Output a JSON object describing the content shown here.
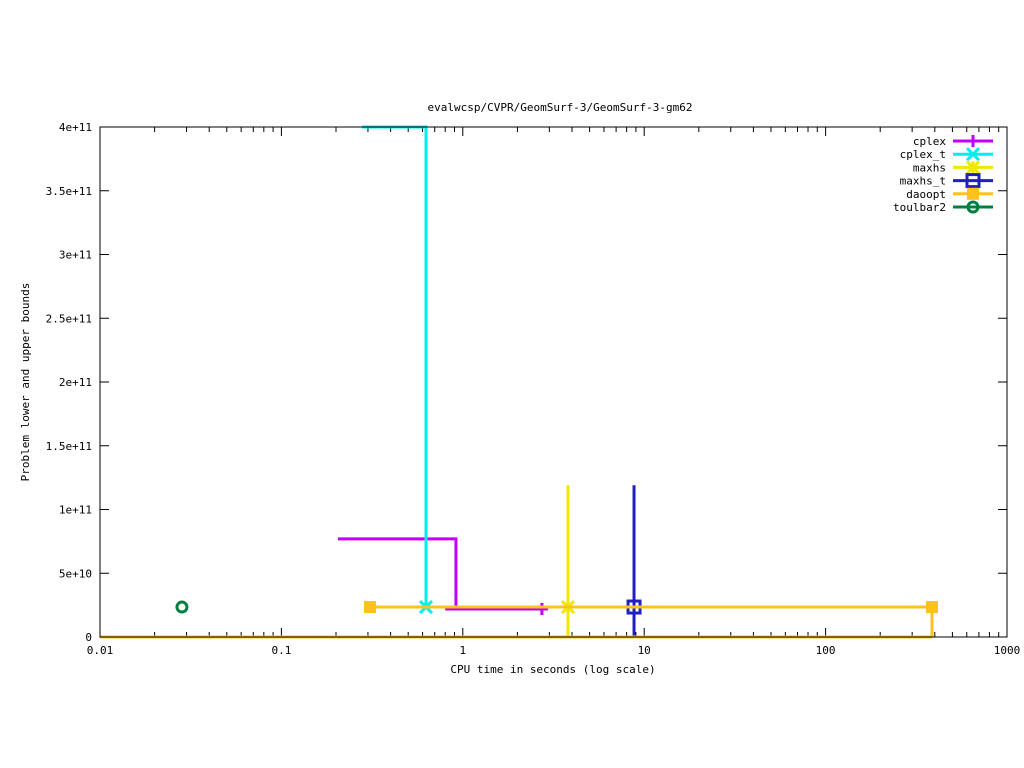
{
  "chart_data": {
    "type": "line",
    "title": "evalwcsp/CVPR/GeomSurf-3/GeomSurf-3-gm62",
    "xlabel": "CPU time in seconds (log scale)",
    "ylabel": "Problem lower and upper bounds",
    "xscale": "log",
    "xlim": [
      0.01,
      1000
    ],
    "ylim": [
      0,
      400000000000
    ],
    "xticks": [
      {
        "v": 0.01,
        "label": "0.01"
      },
      {
        "v": 0.1,
        "label": "0.1"
      },
      {
        "v": 1,
        "label": "1"
      },
      {
        "v": 10,
        "label": "10"
      },
      {
        "v": 100,
        "label": "100"
      },
      {
        "v": 1000,
        "label": "1000"
      }
    ],
    "yticks": [
      {
        "v": 0,
        "label": "0"
      },
      {
        "v": 50000000000,
        "label": "5e+10"
      },
      {
        "v": 100000000000,
        "label": "1e+11"
      },
      {
        "v": 150000000000,
        "label": "1.5e+11"
      },
      {
        "v": 200000000000,
        "label": "2e+11"
      },
      {
        "v": 250000000000,
        "label": "2.5e+11"
      },
      {
        "v": 300000000000,
        "label": "3e+11"
      },
      {
        "v": 350000000000,
        "label": "3.5e+11"
      },
      {
        "v": 400000000000,
        "label": "4e+11"
      }
    ],
    "grid": false,
    "legend_placement": "top-right",
    "series": [
      {
        "name": "cplex",
        "color": "#c000ff",
        "marker": "plus",
        "lines": [
          [
            [
              0.205,
              77000000000
            ],
            [
              0.917,
              77000000000
            ],
            [
              0.917,
              23500000000
            ]
          ],
          [
            [
              0.8,
              22000000000
            ],
            [
              2.73,
              22000000000
            ]
          ]
        ],
        "markers": [
          [
            2.73,
            22000000000
          ]
        ]
      },
      {
        "name": "cplex_t",
        "color": "#00eeee",
        "marker": "cross",
        "lines": [
          [
            [
              0.278,
              400000000000
            ],
            [
              0.627,
              400000000000
            ],
            [
              0.627,
              23500000000
            ]
          ]
        ],
        "markers": [
          [
            0.627,
            23500000000
          ]
        ]
      },
      {
        "name": "maxhs",
        "color": "#f0e800",
        "marker": "star",
        "lines": [
          [
            [
              3.8,
              119000000000
            ],
            [
              3.8,
              0
            ]
          ]
        ],
        "markers": [
          [
            3.8,
            23500000000
          ]
        ]
      },
      {
        "name": "maxhs_t",
        "color": "#2020c0",
        "marker": "box",
        "lines": [
          [
            [
              8.79,
              119000000000
            ],
            [
              8.79,
              0
            ]
          ]
        ],
        "markers": [
          [
            8.79,
            23500000000
          ]
        ]
      },
      {
        "name": "daoopt",
        "color": "#ffc020",
        "marker": "filled-box",
        "lines": [
          [
            [
              0.308,
              23500000000
            ],
            [
              386,
              23500000000
            ],
            [
              386,
              0
            ]
          ],
          [
            [
              0.01,
              0
            ],
            [
              386,
              0
            ]
          ]
        ],
        "markers": [
          [
            0.308,
            23500000000
          ],
          [
            386,
            23500000000
          ]
        ]
      },
      {
        "name": "toulbar2",
        "color": "#008040",
        "marker": "circle",
        "lines": [],
        "markers": [
          [
            0.0283,
            23500000000
          ]
        ]
      }
    ]
  }
}
